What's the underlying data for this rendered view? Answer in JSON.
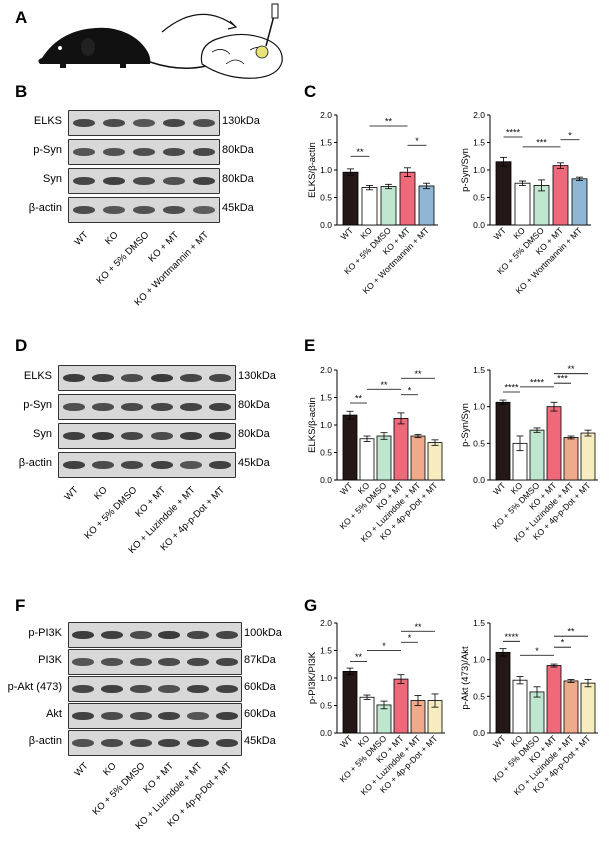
{
  "panels": {
    "A": "A",
    "B": "B",
    "C": "C",
    "D": "D",
    "E": "E",
    "F": "F",
    "G": "G"
  },
  "colors": {
    "WT": "#231815",
    "KO": "#ffffff",
    "DMSO": "#bfe6cf",
    "MT": "#ee6a7a",
    "Wortmannin": "#8fb6d3",
    "Luzindole": "#f0a98a",
    "Dot": "#f6ecc0"
  },
  "blotB": {
    "rows": [
      {
        "label": "ELKS",
        "kda": "130kDa",
        "level": 0.75
      },
      {
        "label": "p-Syn",
        "kda": "80kDa",
        "level": 0.8
      },
      {
        "label": "Syn",
        "kda": "80kDa",
        "level": 0.8
      },
      {
        "label": "β-actin",
        "kda": "45kDa",
        "level": 0.7
      }
    ],
    "lanes": [
      "WT",
      "KO",
      "KO + 5% DMSO",
      "KO + MT",
      "KO + Wortmannin + MT"
    ]
  },
  "blotD": {
    "rows": [
      {
        "label": "ELKS",
        "kda": "130kDa",
        "level": 0.85
      },
      {
        "label": "p-Syn",
        "kda": "80kDa",
        "level": 0.85
      },
      {
        "label": "Syn",
        "kda": "80kDa",
        "level": 0.85
      },
      {
        "label": "β-actin",
        "kda": "45kDa",
        "level": 0.8
      }
    ],
    "lanes": [
      "WT",
      "KO",
      "KO + 5% DMSO",
      "KO + MT",
      "KO + Luzindole + MT",
      "KO + 4p-p-Dot + MT"
    ]
  },
  "blotF": {
    "rows": [
      {
        "label": "p-PI3K",
        "kda": "100kDa",
        "level": 0.85
      },
      {
        "label": "PI3K",
        "kda": "87kDa",
        "level": 0.8
      },
      {
        "label": "p-Akt (473)",
        "kda": "60kDa",
        "level": 0.8
      },
      {
        "label": "Akt",
        "kda": "60kDa",
        "level": 0.8
      },
      {
        "label": "β-actin",
        "kda": "45kDa",
        "level": 0.8
      }
    ],
    "lanes": [
      "WT",
      "KO",
      "KO + 5% DMSO",
      "KO + MT",
      "KO + Luzindole + MT",
      "KO + 4p-p-Dot + MT"
    ]
  },
  "chart_data": [
    {
      "id": "C1",
      "type": "bar",
      "ylabel": "ELKS/β-actin",
      "ylim": [
        0,
        2.0
      ],
      "yticks": [
        "0.0",
        "0.5",
        "1.0",
        "1.5",
        "2.0"
      ],
      "categories": [
        "WT",
        "KO",
        "KO + 5% DMSO",
        "KO + MT",
        "KO + Wortmannin + MT"
      ],
      "values": [
        0.96,
        0.68,
        0.7,
        0.96,
        0.71
      ],
      "errors": [
        0.06,
        0.04,
        0.04,
        0.08,
        0.05
      ],
      "colors": [
        "#231815",
        "#ffffff",
        "#bfe6cf",
        "#ee6a7a",
        "#8fb6d3"
      ],
      "sig": [
        {
          "a": 0,
          "b": 1,
          "label": "**",
          "y": 1.25
        },
        {
          "a": 1,
          "b": 3,
          "label": "**",
          "y": 1.8
        },
        {
          "a": 3,
          "b": 4,
          "label": "*",
          "y": 1.45
        }
      ]
    },
    {
      "id": "C2",
      "type": "bar",
      "ylabel": "p-Syn/Syn",
      "ylim": [
        0,
        2.0
      ],
      "yticks": [
        "0.0",
        "0.5",
        "1.0",
        "1.5",
        "2.0"
      ],
      "categories": [
        "WT",
        "KO",
        "KO + 5% DMSO",
        "KO + MT",
        "KO + Wortmannin + MT"
      ],
      "values": [
        1.15,
        0.76,
        0.72,
        1.08,
        0.84
      ],
      "errors": [
        0.08,
        0.04,
        0.1,
        0.05,
        0.03
      ],
      "colors": [
        "#231815",
        "#ffffff",
        "#bfe6cf",
        "#ee6a7a",
        "#8fb6d3"
      ],
      "sig": [
        {
          "a": 0,
          "b": 1,
          "label": "****",
          "y": 1.6
        },
        {
          "a": 1,
          "b": 3,
          "label": "***",
          "y": 1.42
        },
        {
          "a": 3,
          "b": 4,
          "label": "*",
          "y": 1.55
        }
      ]
    },
    {
      "id": "E1",
      "type": "bar",
      "ylabel": "ELKS/β-actin",
      "ylim": [
        0,
        2.0
      ],
      "yticks": [
        "0.0",
        "0.5",
        "1.0",
        "1.5",
        "2.0"
      ],
      "categories": [
        "WT",
        "KO",
        "KO + 5% DMSO",
        "KO + MT",
        "KO + Luzindole + MT",
        "KO + 4p-p-Dot + MT"
      ],
      "values": [
        1.18,
        0.75,
        0.8,
        1.12,
        0.8,
        0.68
      ],
      "errors": [
        0.07,
        0.05,
        0.06,
        0.1,
        0.03,
        0.05
      ],
      "colors": [
        "#231815",
        "#ffffff",
        "#bfe6cf",
        "#ee6a7a",
        "#f0a98a",
        "#f6ecc0"
      ],
      "sig": [
        {
          "a": 0,
          "b": 1,
          "label": "**",
          "y": 1.4
        },
        {
          "a": 1,
          "b": 3,
          "label": "**",
          "y": 1.65
        },
        {
          "a": 3,
          "b": 4,
          "label": "*",
          "y": 1.55
        },
        {
          "a": 3,
          "b": 5,
          "label": "**",
          "y": 1.85
        }
      ]
    },
    {
      "id": "E2",
      "type": "bar",
      "ylabel": "p-Syn/Syn",
      "ylim": [
        0,
        1.5
      ],
      "yticks": [
        "0.0",
        "0.5",
        "1.0",
        "1.5"
      ],
      "categories": [
        "WT",
        "KO",
        "KO + 5% DMSO",
        "KO + MT",
        "KO + Luzindole + MT",
        "KO + 4p-p-Dot + MT"
      ],
      "values": [
        1.06,
        0.5,
        0.68,
        1.0,
        0.58,
        0.64
      ],
      "errors": [
        0.03,
        0.1,
        0.03,
        0.06,
        0.02,
        0.04
      ],
      "colors": [
        "#231815",
        "#ffffff",
        "#bfe6cf",
        "#ee6a7a",
        "#f0a98a",
        "#f6ecc0"
      ],
      "sig": [
        {
          "a": 0,
          "b": 1,
          "label": "****",
          "y": 1.2
        },
        {
          "a": 1,
          "b": 3,
          "label": "****",
          "y": 1.27
        },
        {
          "a": 3,
          "b": 4,
          "label": "***",
          "y": 1.32
        },
        {
          "a": 3,
          "b": 5,
          "label": "**",
          "y": 1.45
        }
      ]
    },
    {
      "id": "G1",
      "type": "bar",
      "ylabel": "p-PI3K/PI3K",
      "ylim": [
        0,
        2.0
      ],
      "yticks": [
        "0.0",
        "0.5",
        "1.0",
        "1.5",
        "2.0"
      ],
      "categories": [
        "WT",
        "KO",
        "KO + 5% DMSO",
        "KO + MT",
        "KO + Luzindole + MT",
        "KO + 4p-p-Dot + MT"
      ],
      "values": [
        1.12,
        0.65,
        0.51,
        0.98,
        0.59,
        0.59
      ],
      "errors": [
        0.06,
        0.04,
        0.07,
        0.08,
        0.09,
        0.12
      ],
      "colors": [
        "#231815",
        "#ffffff",
        "#bfe6cf",
        "#ee6a7a",
        "#f0a98a",
        "#f6ecc0"
      ],
      "sig": [
        {
          "a": 0,
          "b": 1,
          "label": "**",
          "y": 1.3
        },
        {
          "a": 1,
          "b": 3,
          "label": "*",
          "y": 1.5
        },
        {
          "a": 3,
          "b": 4,
          "label": "*",
          "y": 1.65
        },
        {
          "a": 3,
          "b": 5,
          "label": "**",
          "y": 1.85
        }
      ]
    },
    {
      "id": "G2",
      "type": "bar",
      "ylabel": "p-Akt (473)/Akt",
      "ylim": [
        0,
        1.5
      ],
      "yticks": [
        "0.0",
        "0.5",
        "1.0",
        "1.5"
      ],
      "categories": [
        "WT",
        "KO",
        "KO + 5% DMSO",
        "KO + MT",
        "KO + Luzindole + MT",
        "KO + 4p-p-Dot + MT"
      ],
      "values": [
        1.1,
        0.72,
        0.56,
        0.92,
        0.71,
        0.68
      ],
      "errors": [
        0.05,
        0.05,
        0.07,
        0.02,
        0.02,
        0.05
      ],
      "colors": [
        "#231815",
        "#ffffff",
        "#bfe6cf",
        "#ee6a7a",
        "#f0a98a",
        "#f6ecc0"
      ],
      "sig": [
        {
          "a": 0,
          "b": 1,
          "label": "****",
          "y": 1.25
        },
        {
          "a": 1,
          "b": 3,
          "label": "*",
          "y": 1.06
        },
        {
          "a": 3,
          "b": 4,
          "label": "*",
          "y": 1.17
        },
        {
          "a": 3,
          "b": 5,
          "label": "**",
          "y": 1.32
        }
      ]
    }
  ]
}
